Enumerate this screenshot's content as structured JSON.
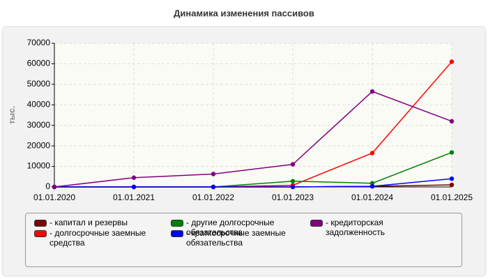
{
  "chart_data": {
    "type": "line",
    "title": "Динамика изменения пассивов",
    "y_label": "тыс.",
    "categories": [
      "01.01.2020",
      "01.01.2021",
      "01.01.2022",
      "01.01.2023",
      "01.01.2024",
      "01.01.2025"
    ],
    "series": [
      {
        "name": "капитал и резервы",
        "color": "#800000",
        "values": [
          0,
          0,
          0,
          0,
          300,
          1000
        ]
      },
      {
        "name": "долгосрочные заемные средства",
        "color": "#ff0000",
        "values": [
          0,
          0,
          0,
          800,
          16500,
          61000
        ]
      },
      {
        "name": "другие долгосрочные обязательства",
        "color": "#008000",
        "values": [
          0,
          0,
          0,
          2800,
          1800,
          16800
        ]
      },
      {
        "name": "краткосрочные заемные обязательства",
        "color": "#0000ff",
        "values": [
          0,
          0,
          0,
          0,
          300,
          4000
        ]
      },
      {
        "name": "кредиторская задолженность",
        "color": "#800080",
        "values": [
          0,
          4500,
          6300,
          11000,
          46500,
          32000
        ]
      }
    ],
    "ylim": [
      0,
      70000
    ],
    "yticks": [
      0,
      10000,
      20000,
      30000,
      40000,
      50000,
      60000,
      70000
    ],
    "grid": true
  }
}
